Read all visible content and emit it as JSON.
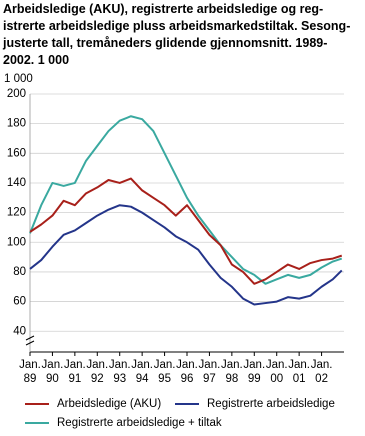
{
  "chart_data": {
    "type": "line",
    "title": "Arbeidsledige (AKU), registrerte arbeidsledige og reg-\nistrerte arbeidsledige pluss arbeidsmarkedstiltak. Sesong-\njusterte tall, tremåneders glidende gjennomsnitt. 1989-\n2002. 1 000",
    "y_label": "1 000",
    "x": [
      1989,
      1989.5,
      1990,
      1990.5,
      1991,
      1991.5,
      1992,
      1992.5,
      1993,
      1993.5,
      1994,
      1994.5,
      1995,
      1995.5,
      1996,
      1996.5,
      1997,
      1997.5,
      1998,
      1998.5,
      1999,
      1999.5,
      2000,
      2000.5,
      2001,
      2001.5,
      2002,
      2002.5,
      2002.9
    ],
    "series": [
      {
        "name": "Arbeidsledige (AKU)",
        "color": "#a8201a",
        "values": [
          107,
          112,
          118,
          128,
          125,
          133,
          137,
          142,
          140,
          143,
          135,
          130,
          125,
          118,
          125,
          115,
          105,
          98,
          85,
          80,
          72,
          75,
          80,
          85,
          82,
          86,
          88,
          89,
          91
        ]
      },
      {
        "name": "Registrerte arbeidsledige",
        "color": "#24358a",
        "values": [
          82,
          88,
          97,
          105,
          108,
          113,
          118,
          122,
          125,
          124,
          120,
          115,
          110,
          104,
          100,
          95,
          85,
          76,
          70,
          62,
          58,
          59,
          60,
          63,
          62,
          64,
          70,
          75,
          81
        ]
      },
      {
        "name": "Registrerte arbeidsledige + tiltak",
        "color": "#3aa9a0",
        "values": [
          106,
          125,
          140,
          138,
          140,
          155,
          165,
          175,
          182,
          185,
          183,
          175,
          160,
          145,
          130,
          118,
          108,
          98,
          90,
          82,
          78,
          72,
          75,
          78,
          76,
          78,
          83,
          87,
          89
        ]
      }
    ],
    "xlim": [
      1989,
      2003
    ],
    "xticks": [
      {
        "value": 1989,
        "label": "Jan. 89"
      },
      {
        "value": 1990,
        "label": "Jan. 90"
      },
      {
        "value": 1991,
        "label": "Jan. 91"
      },
      {
        "value": 1992,
        "label": "Jan. 92"
      },
      {
        "value": 1993,
        "label": "Jan. 93"
      },
      {
        "value": 1994,
        "label": "Jan. 94"
      },
      {
        "value": 1995,
        "label": "Jan. 95"
      },
      {
        "value": 1996,
        "label": "Jan. 96"
      },
      {
        "value": 1997,
        "label": "Jan. 97"
      },
      {
        "value": 1998,
        "label": "Jan. 98"
      },
      {
        "value": 1999,
        "label": "Jan. 99"
      },
      {
        "value": 2000,
        "label": "Jan. 00"
      },
      {
        "value": 2001,
        "label": "Jan. 01"
      },
      {
        "value": 2002,
        "label": "Jan. 02"
      }
    ],
    "ylim": [
      26,
      200
    ],
    "yticks": [
      40,
      60,
      80,
      100,
      120,
      140,
      160,
      180,
      200
    ],
    "grid": true
  }
}
